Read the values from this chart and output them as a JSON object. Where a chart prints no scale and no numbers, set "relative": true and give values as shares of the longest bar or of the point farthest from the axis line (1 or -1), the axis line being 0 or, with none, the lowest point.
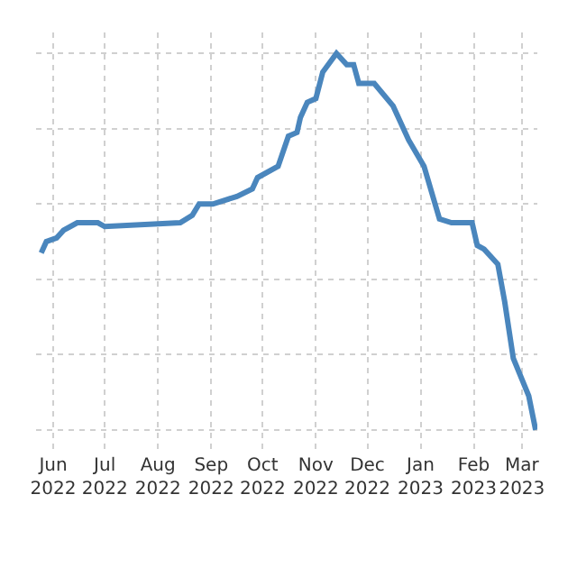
{
  "chart_data": {
    "type": "line",
    "relative": true,
    "grid": true,
    "line_style": "solid",
    "xlim": [
      "2022-05-22",
      "2023-03-10"
    ],
    "xticks": [
      {
        "value": "2022-06-01",
        "label": "Jun 2022"
      },
      {
        "value": "2022-07-01",
        "label": "Jul 2022"
      },
      {
        "value": "2022-08-01",
        "label": "Aug 2022"
      },
      {
        "value": "2022-09-01",
        "label": "Sep 2022"
      },
      {
        "value": "2022-10-01",
        "label": "Oct 2022"
      },
      {
        "value": "2022-11-01",
        "label": "Nov 2022"
      },
      {
        "value": "2022-12-01",
        "label": "Dec 2022"
      },
      {
        "value": "2023-01-01",
        "label": "Jan 2023"
      },
      {
        "value": "2023-02-01",
        "label": "Feb 2023"
      },
      {
        "value": "2023-03-01",
        "label": "Mar 2023"
      }
    ],
    "x": [
      "2022-05-25",
      "2022-05-28",
      "2022-06-03",
      "2022-06-07",
      "2022-06-15",
      "2022-06-27",
      "2022-07-01",
      "2022-08-14",
      "2022-08-21",
      "2022-08-25",
      "2022-09-02",
      "2022-09-16",
      "2022-09-25",
      "2022-09-28",
      "2022-10-10",
      "2022-10-16",
      "2022-10-21",
      "2022-10-23",
      "2022-10-27",
      "2022-11-01",
      "2022-11-05",
      "2022-11-13",
      "2022-11-19",
      "2022-11-23",
      "2022-11-26",
      "2022-12-05",
      "2022-12-16",
      "2022-12-25",
      "2023-01-03",
      "2023-01-12",
      "2023-01-19",
      "2023-01-31",
      "2023-02-03",
      "2023-02-07",
      "2023-02-15",
      "2023-02-19",
      "2023-02-24",
      "2023-03-05",
      "2023-03-09"
    ],
    "series": [
      {
        "color": "#4a86bd",
        "values": [
          0.47,
          0.5,
          0.51,
          0.53,
          0.55,
          0.55,
          0.54,
          0.55,
          0.57,
          0.6,
          0.6,
          0.62,
          0.64,
          0.67,
          0.7,
          0.78,
          0.79,
          0.83,
          0.87,
          0.88,
          0.95,
          1,
          0.97,
          0.97,
          0.92,
          0.92,
          0.86,
          0.77,
          0.7,
          0.56,
          0.55,
          0.55,
          0.49,
          0.48,
          0.44,
          0.34,
          0.19,
          0.09,
          0
        ]
      }
    ]
  }
}
